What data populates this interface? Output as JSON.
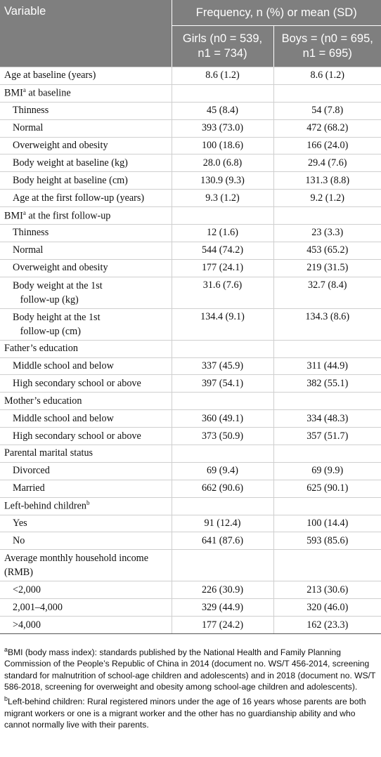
{
  "header": {
    "variable": "Variable",
    "frequency": "Frequency, n (%) or mean (SD)",
    "girls_line1": "Girls (n0 = 539,",
    "girls_line2": "n1 = 734)",
    "boys_line1": "Boys = (n0 = 695,",
    "boys_line2": "n1 = 695)"
  },
  "rows": [
    {
      "label": "Age at baseline (years)",
      "girls": "8.6 (1.2)",
      "boys": "8.6 (1.2)"
    },
    {
      "label": "BMI",
      "sup": "a",
      "label_rest": " at baseline",
      "girls": "",
      "boys": ""
    },
    {
      "label": "Thinness",
      "girls": "45 (8.4)",
      "boys": "54 (7.8)"
    },
    {
      "label": "Normal",
      "girls": "393 (73.0)",
      "boys": "472 (68.2)"
    },
    {
      "label": "Overweight and obesity",
      "girls": "100 (18.6)",
      "boys": "166 (24.0)"
    },
    {
      "label": "Body weight at baseline (kg)",
      "girls": "28.0 (6.8)",
      "boys": "29.4 (7.6)"
    },
    {
      "label": "Body height at baseline (cm)",
      "girls": "130.9 (9.3)",
      "boys": "131.3 (8.8)"
    },
    {
      "label": "Age at the first follow-up (years)",
      "girls": "9.3 (1.2)",
      "boys": "9.2 (1.2)"
    },
    {
      "label": "BMI",
      "sup": "a",
      "label_rest": " at the first follow-up",
      "girls": "",
      "boys": ""
    },
    {
      "label": "Thinness",
      "girls": "12 (1.6)",
      "boys": "23 (3.3)"
    },
    {
      "label": "Normal",
      "girls": "544 (74.2)",
      "boys": "453 (65.2)"
    },
    {
      "label": "Overweight and obesity",
      "girls": "177 (24.1)",
      "boys": "219 (31.5)"
    },
    {
      "label": "Body weight at the 1st",
      "label_line2": "follow-up (kg)",
      "girls": "31.6 (7.6)",
      "boys": "32.7 (8.4)"
    },
    {
      "label": "Body height at the 1st",
      "label_line2": "follow-up (cm)",
      "girls": "134.4 (9.1)",
      "boys": "134.3 (8.6)"
    },
    {
      "label": "Father’s education",
      "girls": "",
      "boys": ""
    },
    {
      "label": "Middle school and below",
      "girls": "337 (45.9)",
      "boys": "311 (44.9)"
    },
    {
      "label": "High secondary school or above",
      "girls": "397 (54.1)",
      "boys": "382 (55.1)"
    },
    {
      "label": "Mother’s education",
      "girls": "",
      "boys": ""
    },
    {
      "label": "Middle school and below",
      "girls": "360 (49.1)",
      "boys": "334 (48.3)"
    },
    {
      "label": "High secondary school or above",
      "girls": "373 (50.9)",
      "boys": "357 (51.7)"
    },
    {
      "label": "Parental marital status",
      "girls": "",
      "boys": ""
    },
    {
      "label": "Divorced",
      "girls": "69 (9.4)",
      "boys": "69 (9.9)"
    },
    {
      "label": "Married",
      "girls": "662 (90.6)",
      "boys": "625 (90.1)"
    },
    {
      "label": "Left-behind children",
      "sup": "b",
      "girls": "",
      "boys": ""
    },
    {
      "label": "Yes",
      "girls": "91 (12.4)",
      "boys": "100 (14.4)"
    },
    {
      "label": "No",
      "girls": "641 (87.6)",
      "boys": "593 (85.6)"
    },
    {
      "label": "Average monthly household income",
      "label_line2": "(RMB)",
      "girls": "",
      "boys": ""
    },
    {
      "label": "<2,000",
      "girls": "226 (30.9)",
      "boys": "213 (30.6)"
    },
    {
      "label": "2,001–4,000",
      "girls": "329 (44.9)",
      "boys": "320 (46.0)"
    },
    {
      "label": ">4,000",
      "girls": "177 (24.2)",
      "boys": "162 (23.3)"
    }
  ],
  "footnotes": {
    "a_mark": "a",
    "a_text": "BMI (body mass index): standards published by the National Health and Family Planning Commission of the People’s Republic of China in 2014 (document no. WS/T 456-2014, screening standard for malnutrition of school-age children and adolescents) and in 2018 (document no. WS/T 586-2018, screening for overweight and obesity among school-age children and adolescents).",
    "b_mark": "b",
    "b_text": "Left-behind children: Rural registered minors under the age of 16 years whose parents are both migrant workers or one is a migrant worker and the other has no guardianship ability and who cannot normally live with their parents."
  }
}
